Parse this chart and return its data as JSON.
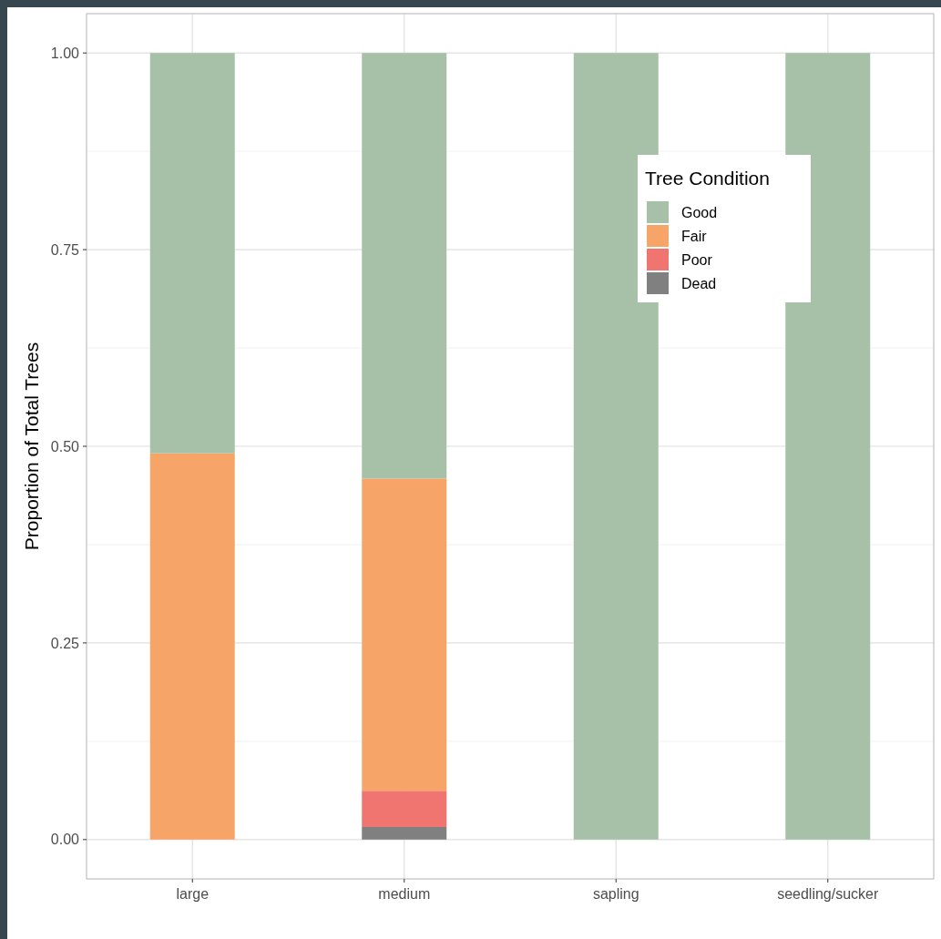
{
  "chart_data": {
    "type": "bar",
    "ylabel": "Proportion of Total Trees",
    "legend_title": "Tree Condition",
    "categories": [
      "large",
      "medium",
      "sapling",
      "seedling/sucker"
    ],
    "stacked": true,
    "series": [
      {
        "name": "Dead",
        "color": "#808080",
        "values": [
          0,
          0.016,
          0,
          0
        ]
      },
      {
        "name": "Poor",
        "color": "#f07470",
        "values": [
          0,
          0.046,
          0,
          0
        ]
      },
      {
        "name": "Fair",
        "color": "#f7a468",
        "values": [
          0.491,
          0.397,
          0,
          0
        ]
      },
      {
        "name": "Good",
        "color": "#a7c1a8",
        "values": [
          0.509,
          0.541,
          1,
          1
        ]
      }
    ],
    "ylim": [
      -0.05,
      1.05
    ],
    "yticks": [
      {
        "value": 0,
        "label": "0.00"
      },
      {
        "value": 0.25,
        "label": "0.25"
      },
      {
        "value": 0.5,
        "label": "0.50"
      },
      {
        "value": 0.75,
        "label": "0.75"
      },
      {
        "value": 1,
        "label": "1.00"
      }
    ],
    "grid": true,
    "legend": "top right"
  }
}
